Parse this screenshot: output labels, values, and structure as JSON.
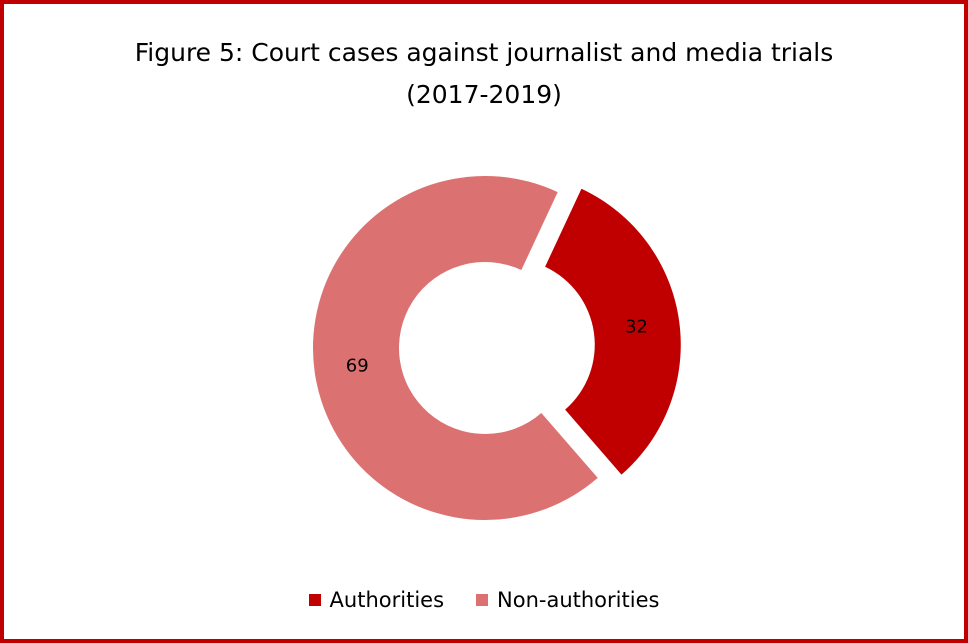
{
  "chart_data": {
    "type": "pie",
    "variant": "donut",
    "title": "Figure 5: Court cases against journalist and media trials",
    "subtitle": "(2017-2019)",
    "categories": [
      "Authorities",
      "Non-authorities"
    ],
    "values": [
      32,
      69
    ],
    "colors": [
      "#c00000",
      "#dc7171"
    ],
    "exploded": [
      true,
      false
    ],
    "legend_position": "bottom"
  },
  "colors": {
    "border": "#c00000"
  }
}
